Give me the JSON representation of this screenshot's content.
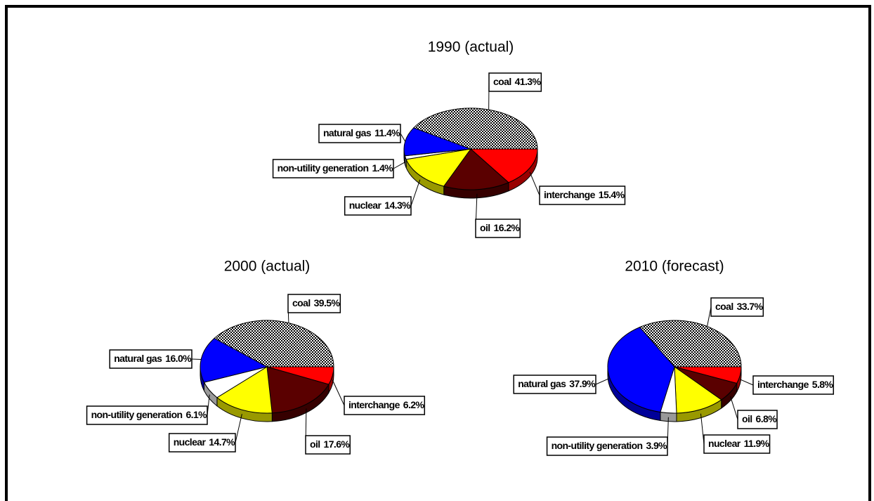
{
  "chart_data": [
    {
      "type": "pie",
      "title": "1990 (actual)",
      "categories": [
        "coal",
        "interchange",
        "oil",
        "nuclear",
        "non-utility generation",
        "natural gas"
      ],
      "values": [
        41.3,
        15.4,
        16.2,
        14.3,
        1.4,
        11.4
      ],
      "value_labels": [
        "41.3%",
        "15.4%",
        "16.2%",
        "14.3%",
        "1.4%",
        "11.4%"
      ],
      "colors": [
        "dots",
        "#ff0000",
        "#5a0000",
        "#ffff00",
        "#ffffff",
        "#0000ff"
      ]
    },
    {
      "type": "pie",
      "title": "2000 (actual)",
      "categories": [
        "coal",
        "interchange",
        "oil",
        "nuclear",
        "non-utility generation",
        "natural gas"
      ],
      "values": [
        39.5,
        6.2,
        17.6,
        14.7,
        6.1,
        16.0
      ],
      "value_labels": [
        "39.5%",
        "6.2%",
        "17.6%",
        "14.7%",
        "6.1%",
        "16.0%"
      ],
      "colors": [
        "dots",
        "#ff0000",
        "#5a0000",
        "#ffff00",
        "#ffffff",
        "#0000ff"
      ]
    },
    {
      "type": "pie",
      "title": "2010 (forecast)",
      "categories": [
        "coal",
        "interchange",
        "oil",
        "nuclear",
        "non-utility generation",
        "natural gas"
      ],
      "values": [
        33.7,
        5.8,
        6.8,
        11.9,
        3.9,
        37.9
      ],
      "value_labels": [
        "33.7%",
        "5.8%",
        "6.8%",
        "11.9%",
        "3.9%",
        "37.9%"
      ],
      "colors": [
        "dots",
        "#ff0000",
        "#5a0000",
        "#ffff00",
        "#ffffff",
        "#0000ff"
      ]
    }
  ]
}
